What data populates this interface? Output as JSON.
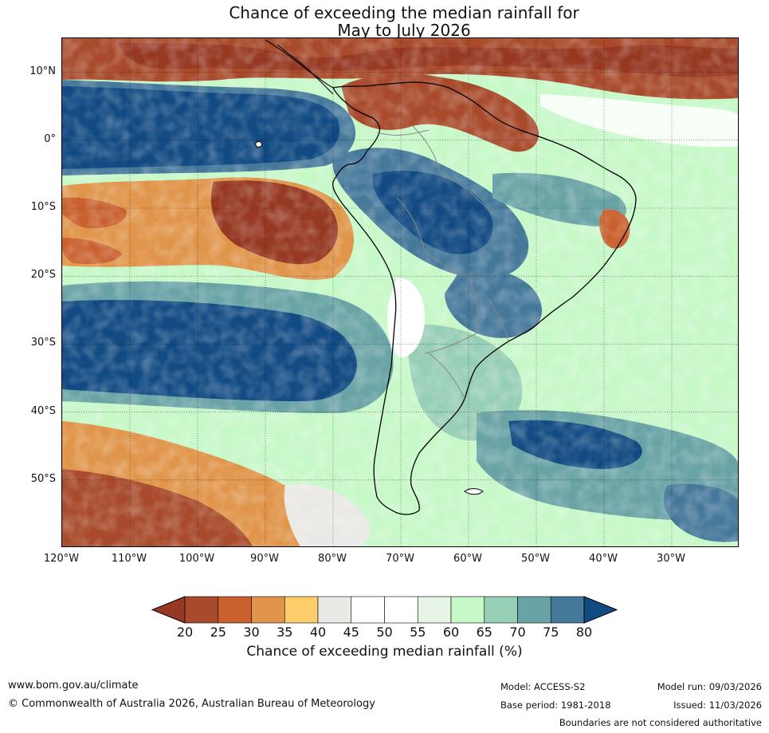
{
  "title": {
    "line1": "Chance of exceeding the median rainfall for",
    "line2": "May to July 2026"
  },
  "map": {
    "lat_labels": [
      "10°N",
      "0°",
      "10°S",
      "20°S",
      "30°S",
      "40°S",
      "50°S"
    ],
    "lat_values": [
      10,
      0,
      -10,
      -20,
      -30,
      -40,
      -50
    ],
    "lon_labels": [
      "120°W",
      "110°W",
      "100°W",
      "90°W",
      "80°W",
      "70°W",
      "60°W",
      "50°W",
      "40°W",
      "30°W"
    ],
    "lon_values": [
      -120,
      -110,
      -100,
      -90,
      -80,
      -70,
      -60,
      -50,
      -40,
      -30
    ],
    "extent": {
      "lon_min": -120,
      "lon_max": -20,
      "lat_min": -60,
      "lat_max": 15
    }
  },
  "colorbar": {
    "ticks": [
      "20",
      "25",
      "30",
      "35",
      "40",
      "45",
      "50",
      "55",
      "60",
      "65",
      "70",
      "75",
      "80"
    ],
    "colors": [
      "#a84a2b",
      "#c9612f",
      "#e0954a",
      "#fdcd6c",
      "#ebe9e5",
      "#ffffff",
      "#ffffff",
      "#e6f5e6",
      "#c7f8c8",
      "#97ceb6",
      "#6aa3a6",
      "#46789a",
      "#124b83"
    ],
    "under_color": "#963822",
    "over_color": "#124b83",
    "label": "Chance of exceeding median rainfall (%)"
  },
  "footer": {
    "url": "www.bom.gov.au/climate",
    "copyright": "© Commonwealth of Australia 2026, Australian Bureau of Meteorology",
    "model": "Model: ACCESS-S2",
    "base_period": "Base period: 1981-2018",
    "model_run": "Model run: 09/03/2026",
    "issued": "Issued: 11/03/2026",
    "disclaimer": "Boundaries are not considered authoritative"
  }
}
